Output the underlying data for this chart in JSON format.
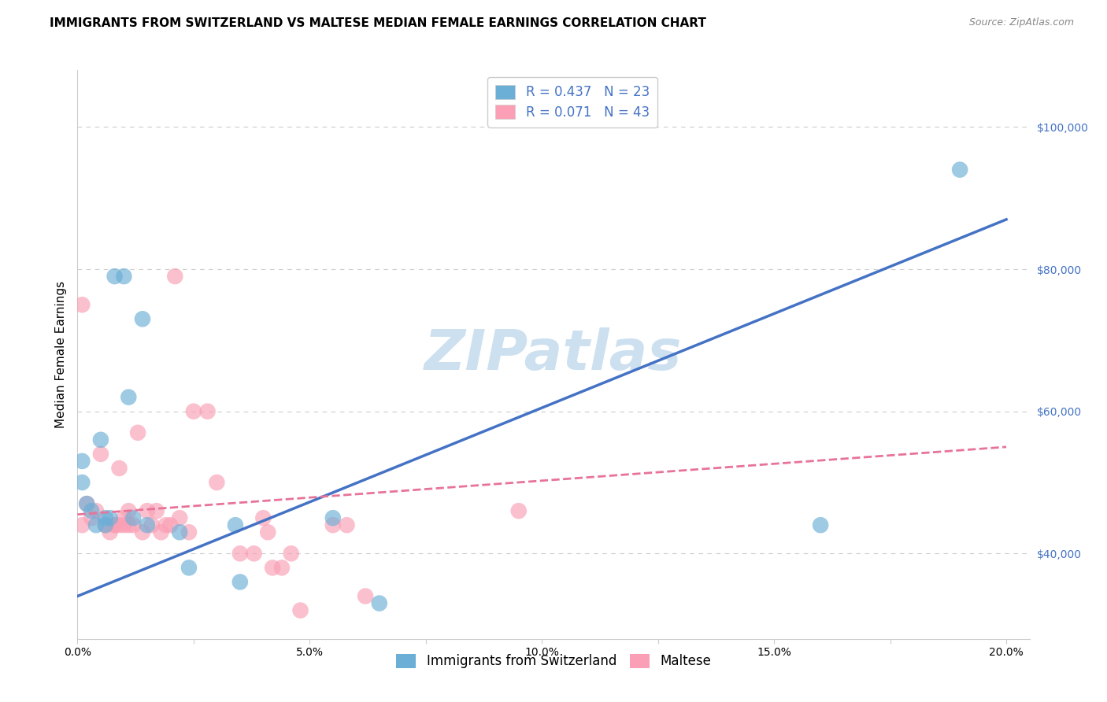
{
  "title": "IMMIGRANTS FROM SWITZERLAND VS MALTESE MEDIAN FEMALE EARNINGS CORRELATION CHART",
  "source": "Source: ZipAtlas.com",
  "xlabel": "",
  "ylabel": "Median Female Earnings",
  "series1_label": "Immigrants from Switzerland",
  "series2_label": "Maltese",
  "series1_color": "#6baed6",
  "series2_color": "#fa9fb5",
  "series1_R": "0.437",
  "series1_N": "23",
  "series2_R": "0.071",
  "series2_N": "43",
  "xlim": [
    0.0,
    0.205
  ],
  "ylim": [
    28000,
    108000
  ],
  "yticks": [
    40000,
    60000,
    80000,
    100000
  ],
  "ytick_labels": [
    "$40,000",
    "$60,000",
    "$80,000",
    "$100,000"
  ],
  "xticks": [
    0.0,
    0.025,
    0.05,
    0.075,
    0.1,
    0.125,
    0.15,
    0.175,
    0.2
  ],
  "xtick_labels": [
    "0.0%",
    "",
    "5.0%",
    "",
    "10.0%",
    "",
    "15.0%",
    "",
    "20.0%"
  ],
  "watermark": "ZIPatlas",
  "series1_x": [
    0.001,
    0.001,
    0.002,
    0.003,
    0.004,
    0.005,
    0.006,
    0.006,
    0.007,
    0.008,
    0.01,
    0.011,
    0.012,
    0.014,
    0.015,
    0.022,
    0.024,
    0.034,
    0.035,
    0.055,
    0.065,
    0.16,
    0.19
  ],
  "series1_y": [
    50000,
    53000,
    47000,
    46000,
    44000,
    56000,
    45000,
    44000,
    45000,
    79000,
    79000,
    62000,
    45000,
    73000,
    44000,
    43000,
    38000,
    44000,
    36000,
    45000,
    33000,
    44000,
    94000
  ],
  "series2_x": [
    0.001,
    0.001,
    0.002,
    0.003,
    0.004,
    0.005,
    0.006,
    0.007,
    0.008,
    0.008,
    0.009,
    0.009,
    0.01,
    0.01,
    0.011,
    0.011,
    0.012,
    0.013,
    0.014,
    0.015,
    0.016,
    0.017,
    0.018,
    0.019,
    0.02,
    0.021,
    0.022,
    0.024,
    0.025,
    0.028,
    0.03,
    0.035,
    0.038,
    0.04,
    0.041,
    0.042,
    0.044,
    0.046,
    0.048,
    0.055,
    0.058,
    0.062,
    0.095
  ],
  "series2_y": [
    44000,
    75000,
    47000,
    45000,
    46000,
    54000,
    44000,
    43000,
    44000,
    44000,
    44000,
    52000,
    45000,
    44000,
    46000,
    44000,
    44000,
    57000,
    43000,
    46000,
    44000,
    46000,
    43000,
    44000,
    44000,
    79000,
    45000,
    43000,
    60000,
    60000,
    50000,
    40000,
    40000,
    45000,
    43000,
    38000,
    38000,
    40000,
    32000,
    44000,
    44000,
    34000,
    46000
  ],
  "line1_x0": 0.0,
  "line1_y0": 34000,
  "line1_x1": 0.2,
  "line1_y1": 87000,
  "line2_x0": 0.0,
  "line2_y0": 45500,
  "line2_x1": 0.2,
  "line2_y1": 55000,
  "grid_color": "#cccccc",
  "background_color": "#ffffff",
  "title_fontsize": 11,
  "axis_label_fontsize": 11,
  "tick_fontsize": 10,
  "legend_fontsize": 12,
  "watermark_fontsize": 52,
  "watermark_color": "#cde0f0",
  "ytick_color": "#4472c4",
  "line1_color": "#4472c4",
  "line2_color": "#e87399",
  "line1_style": "-",
  "line2_style": "--"
}
